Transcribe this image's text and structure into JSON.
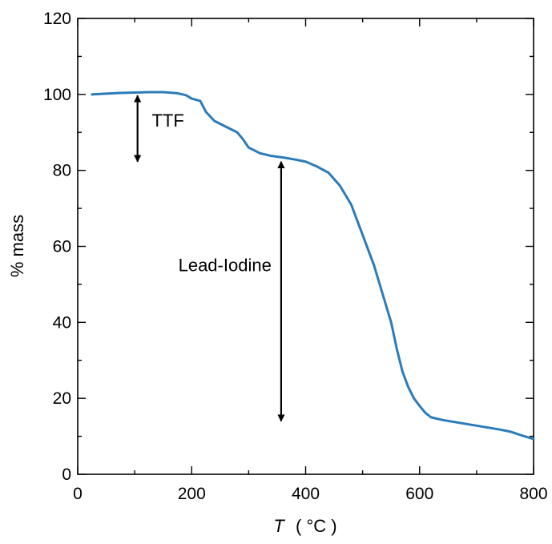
{
  "chart_data": {
    "type": "line",
    "title": "",
    "xlabel": {
      "symbol": "T",
      "unit": "( °C )"
    },
    "ylabel": "% mass",
    "xlim": [
      0,
      800
    ],
    "ylim": [
      0,
      120
    ],
    "xticks": [
      0,
      200,
      400,
      600,
      800
    ],
    "yticks": [
      0,
      20,
      40,
      60,
      80,
      100,
      120
    ],
    "grid": false,
    "series": [
      {
        "color": "#2b7bba",
        "x": [
          25,
          50,
          75,
          100,
          125,
          150,
          175,
          190,
          200,
          215,
          225,
          240,
          260,
          280,
          290,
          300,
          320,
          340,
          360,
          380,
          400,
          420,
          440,
          460,
          480,
          500,
          520,
          540,
          550,
          560,
          570,
          580,
          590,
          600,
          610,
          620,
          640,
          660,
          680,
          700,
          720,
          740,
          760,
          780,
          800
        ],
        "y": [
          100.0,
          100.2,
          100.4,
          100.5,
          100.6,
          100.6,
          100.3,
          99.8,
          98.9,
          98.3,
          95.4,
          93.0,
          91.5,
          90.0,
          88.2,
          86.0,
          84.5,
          83.8,
          83.4,
          82.9,
          82.3,
          81.0,
          79.4,
          76.0,
          71.0,
          63.0,
          55.0,
          45.0,
          40.0,
          33.0,
          27.0,
          23.0,
          20.0,
          18.0,
          16.2,
          15.0,
          14.3,
          13.8,
          13.3,
          12.8,
          12.3,
          11.8,
          11.2,
          10.2,
          9.3
        ]
      }
    ],
    "annotations": [
      {
        "label": "TTF",
        "x": 105,
        "y_from": 99.7,
        "y_to": 82.3,
        "label_x": 130,
        "label_y": 91.5
      },
      {
        "label": "Lead-Iodine",
        "x": 357,
        "y_from": 82.3,
        "y_to": 14.0,
        "label_x": 340,
        "label_y": 53.5
      }
    ]
  }
}
